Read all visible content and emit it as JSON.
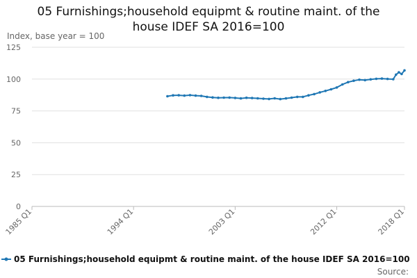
{
  "chart_data": {
    "type": "line",
    "title_lines": [
      "05 Furnishings;household equipmt & routine maint. of the",
      "house IDEF SA 2016=100"
    ],
    "ylabel": "Index, base year = 100",
    "source": "Source:",
    "color": "#1f77b4",
    "xlim": [
      "1985 Q1",
      "2018 Q1"
    ],
    "ylim": [
      0,
      125
    ],
    "yticks": [
      0,
      25,
      50,
      75,
      100,
      125
    ],
    "xticks": [
      "1985 Q1",
      "1994 Q1",
      "2003 Q1",
      "2012 Q1",
      "2018 Q1"
    ],
    "grid": "horizontal",
    "legend_position": "bottom",
    "series": [
      {
        "name": "05 Furnishings;household equipmt & routine maint. of the house IDEF SA 2016=100",
        "x": [
          "1997 Q1",
          "1997 Q3",
          "1998 Q1",
          "1998 Q3",
          "1999 Q1",
          "1999 Q3",
          "2000 Q1",
          "2000 Q3",
          "2001 Q1",
          "2001 Q3",
          "2002 Q1",
          "2002 Q3",
          "2003 Q1",
          "2003 Q3",
          "2004 Q1",
          "2004 Q3",
          "2005 Q1",
          "2005 Q3",
          "2006 Q1",
          "2006 Q3",
          "2007 Q1",
          "2007 Q3",
          "2008 Q1",
          "2008 Q3",
          "2009 Q1",
          "2009 Q3",
          "2010 Q1",
          "2010 Q3",
          "2011 Q1",
          "2011 Q3",
          "2012 Q1",
          "2012 Q3",
          "2013 Q1",
          "2013 Q3",
          "2014 Q1",
          "2014 Q3",
          "2015 Q1",
          "2015 Q3",
          "2016 Q1",
          "2016 Q3",
          "2017 Q1",
          "2017 Q2",
          "2017 Q3",
          "2017 Q4",
          "2018 Q1"
        ],
        "values": [
          86.5,
          87.2,
          87.3,
          87.0,
          87.4,
          87.0,
          86.8,
          86.0,
          85.6,
          85.3,
          85.4,
          85.5,
          85.2,
          84.8,
          85.3,
          85.1,
          84.9,
          84.6,
          84.4,
          84.9,
          84.3,
          84.8,
          85.4,
          86.0,
          86.0,
          87.2,
          88.2,
          89.6,
          90.7,
          92.0,
          93.4,
          95.8,
          97.6,
          98.7,
          99.5,
          99.2,
          99.8,
          100.2,
          100.4,
          100.1,
          99.9,
          103.5,
          105.3,
          104.0,
          106.8
        ]
      }
    ]
  }
}
